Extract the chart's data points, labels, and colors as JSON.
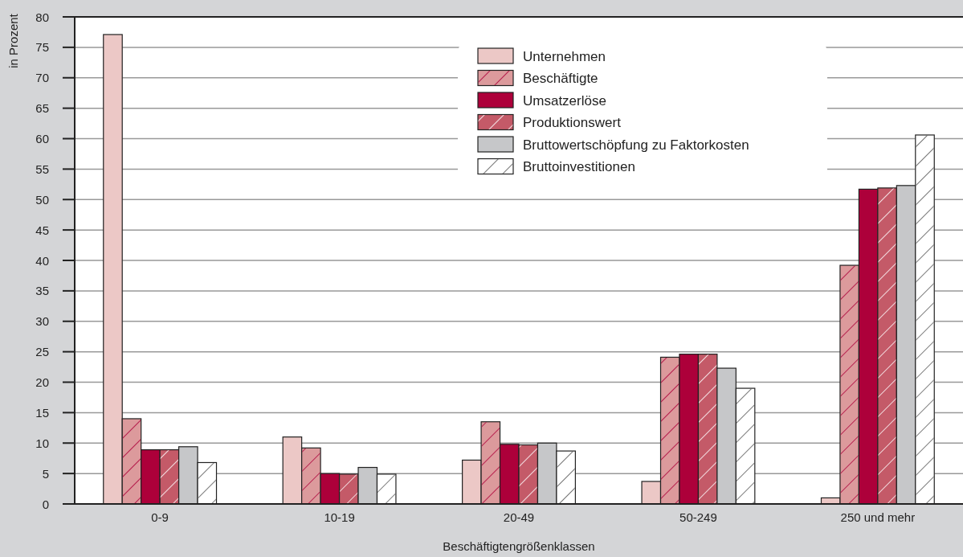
{
  "chart_data": {
    "type": "bar",
    "xlabel": "Beschäftigtengrößenklassen",
    "ylabel": "in Prozent",
    "categories": [
      "0-9",
      "10-19",
      "20-49",
      "50-249",
      "250 und mehr"
    ],
    "series": [
      {
        "name": "Unternehmen",
        "color": "#ecc8c6",
        "values": [
          77.1,
          11.0,
          7.2,
          3.7,
          1.0
        ]
      },
      {
        "name": "Beschäftigte",
        "color": "#dc9a9c",
        "values": [
          14.0,
          9.2,
          13.5,
          24.1,
          39.2
        ]
      },
      {
        "name": "Umsatzerlöse",
        "color": "#ad003a",
        "values": [
          8.9,
          5.0,
          9.8,
          24.6,
          51.7
        ]
      },
      {
        "name": "Produktionswert",
        "color": "#c45a68",
        "values": [
          8.9,
          4.9,
          9.7,
          24.6,
          51.9
        ]
      },
      {
        "name": "Bruttowertschöpfung zu Faktorkosten",
        "color": "#c6c7c9",
        "values": [
          9.4,
          6.0,
          10.0,
          22.3,
          52.3
        ]
      },
      {
        "name": "Bruttoinvestitionen",
        "color": "#ffffff",
        "values": [
          6.8,
          4.9,
          8.7,
          19.0,
          60.6
        ]
      }
    ],
    "ylim": [
      0,
      80
    ],
    "yticks": [
      0,
      5,
      10,
      15,
      20,
      25,
      30,
      35,
      40,
      45,
      50,
      55,
      60,
      65,
      70,
      75,
      80
    ],
    "grid": "y",
    "legend": "top right"
  }
}
